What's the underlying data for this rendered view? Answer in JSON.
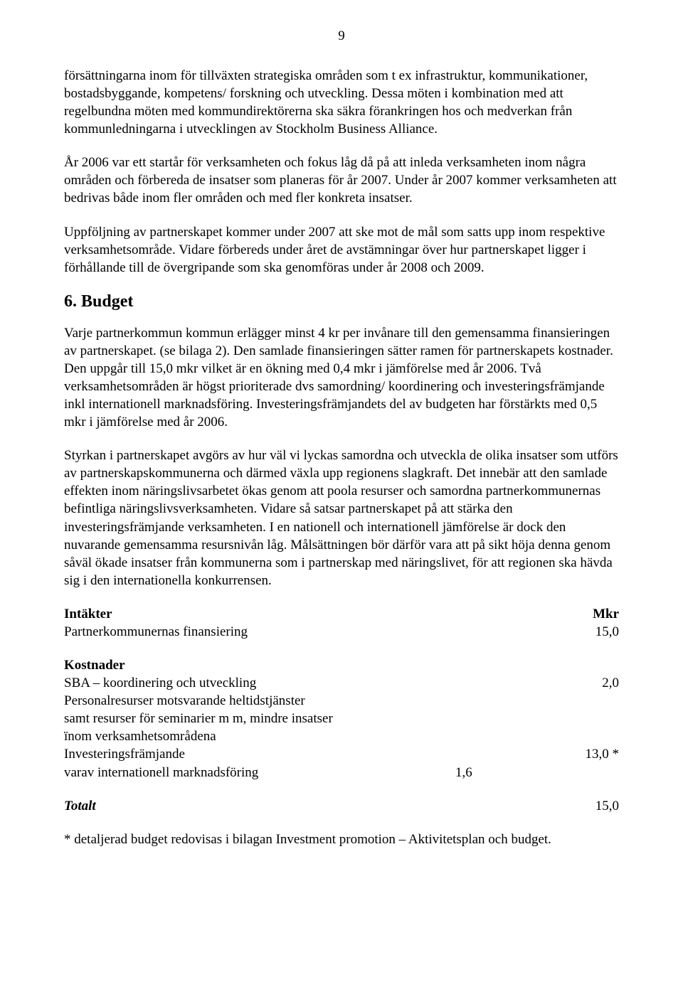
{
  "page_number": "9",
  "para1": "försättningarna inom för tillväxten strategiska områden som t ex infrastruktur, kommunikationer, bostadsbyggande, kompetens/ forskning och utveckling. Dessa möten i kombination med att regelbundna möten med kommundirektörerna ska säkra förankringen hos och medverkan från kommunledningarna i utvecklingen av Stockholm Business Alliance.",
  "para2": "År 2006 var ett startår för verksamheten och fokus låg då på att inleda verksamheten inom några områden och förbereda de insatser som planeras för år 2007. Under år 2007 kommer verksamheten att bedrivas både inom fler områden och med fler konkreta insatser.",
  "para3": "Uppföljning av partnerskapet kommer under 2007 att ske mot de mål som satts upp inom respektive verksamhetsområde. Vidare förbereds under året de avstämningar över hur partnerskapet ligger i förhållande till de övergripande som ska genomföras under år 2008 och 2009.",
  "heading_budget": "6. Budget",
  "para4": "Varje partnerkommun kommun erlägger minst 4 kr per invånare till den gemensamma finansieringen av partnerskapet. (se bilaga 2). Den samlade finansieringen sätter ramen för partnerskapets kostnader. Den uppgår till 15,0 mkr vilket är en ökning med 0,4 mkr i jämförelse med år 2006. Två verksamhetsområden är högst prioriterade dvs samordning/ koordinering och investeringsfrämjande inkl internationell marknadsföring. Investeringsfrämjandets del av budgeten har förstärkts med 0,5 mkr i jämförelse med år 2006.",
  "para5": "Styrkan i partnerskapet avgörs av hur väl vi lyckas samordna och utveckla de olika insatser som utförs av partnerskapskommunerna och därmed växla upp regionens slagkraft. Det innebär att den samlade effekten inom näringslivsarbetet ökas genom att poola resurser och samordna partnerkommunernas befintliga näringslivsverksamheten. Vidare så satsar partnerskapet på att stärka den investeringsfrämjande verksamheten. I en nationell och internationell jämförelse är dock den nuvarande gemensamma resursnivån låg. Målsättningen bör därför vara att på sikt höja denna genom såväl ökade insatser från kommunerna som i partnerskap med näringslivet, för att regionen ska hävda sig i den internationella konkurrensen.",
  "intakter_label": "Intäkter",
  "mkr_label": "Mkr",
  "intakter_row1_label": "Partnerkommunernas finansiering",
  "intakter_row1_value": "15,0",
  "kostnader_label": "Kostnader",
  "kostnader_row1_label": "SBA – koordinering och utveckling",
  "kostnader_row1_value": "2,0",
  "kostnader_row2_label": "Personalresurser motsvarande  heltidstjänster",
  "kostnader_row3_label": "samt resurser för seminarier m m, mindre insatser",
  "kostnader_row4_label": "ïnom verksamhetsområdena",
  "kostnader_row5_label": "Investeringsfrämjande",
  "kostnader_row5_value": "13,0 *",
  "kostnader_row6_label": "varav internationell marknadsföring",
  "kostnader_row6_mid": "1,6",
  "totalt_label": "Totalt",
  "totalt_value": "15,0",
  "footnote": "* detaljerad budget redovisas i bilagan Investment promotion – Aktivitetsplan och budget."
}
